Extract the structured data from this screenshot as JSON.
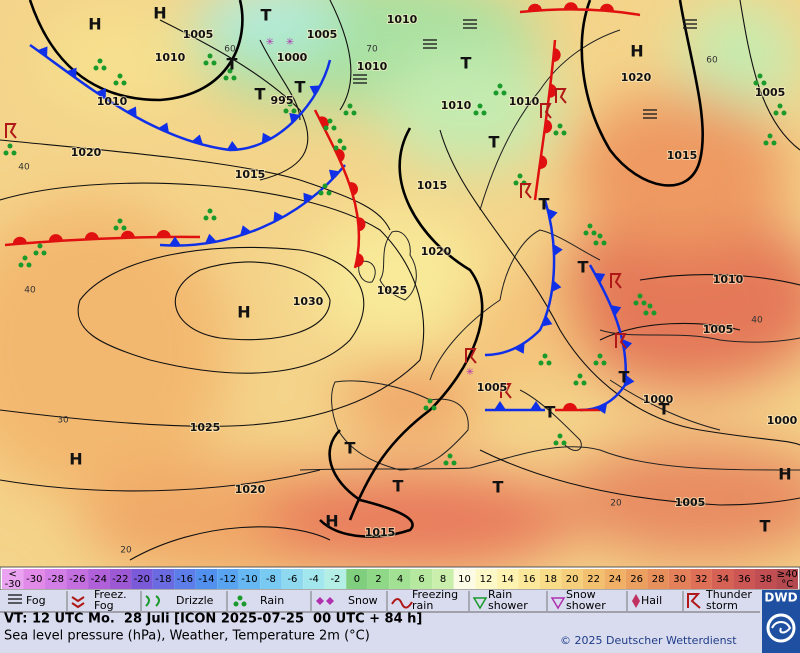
{
  "map": {
    "pressure_labels": [
      "1010",
      "1005",
      "1005",
      "1010",
      "1000",
      "1010",
      "995",
      "1010",
      "1010",
      "1010",
      "1020",
      "1015",
      "1015",
      "1015",
      "1020",
      "1005",
      "1020",
      "1025",
      "1030",
      "1010",
      "1005",
      "1005",
      "1000",
      "1000",
      "1025",
      "1020",
      "1015",
      "1005"
    ],
    "pressure_systems": [
      "H",
      "H",
      "T",
      "H",
      "T",
      "T",
      "T",
      "T",
      "T",
      "T",
      "H",
      "T",
      "T",
      "T",
      "T",
      "T",
      "T",
      "H",
      "H",
      "T",
      "T",
      "H"
    ],
    "grid_labels": [
      "60",
      "70",
      "60",
      "40",
      "40",
      "40",
      "30",
      "20",
      "20"
    ]
  },
  "scale": {
    "low_label": [
      "<",
      "-30"
    ],
    "values": [
      -30,
      -28,
      -26,
      -24,
      -22,
      -20,
      -18,
      -16,
      -14,
      -12,
      -10,
      -8,
      -6,
      -4,
      -2,
      0,
      2,
      4,
      6,
      8,
      10,
      12,
      14,
      16,
      18,
      20,
      22,
      24,
      26,
      28,
      30,
      32,
      34,
      36,
      38
    ],
    "high_label": [
      "≥40",
      "°C"
    ],
    "colors": [
      "#e9a3f0",
      "#e18ae8",
      "#d37ee6",
      "#c46fe0",
      "#b061d9",
      "#9d59d4",
      "#7a5ad8",
      "#6a6be0",
      "#5d7ee8",
      "#5290ee",
      "#58a4f0",
      "#66b8f2",
      "#79caf2",
      "#8ed9f0",
      "#a2e6ee",
      "#b4efe6",
      "#7fcf7f",
      "#8ed888",
      "#a2e194",
      "#b6e8a0",
      "#caefac",
      "#fbfbe6",
      "#fdf8c8",
      "#fdf2b0",
      "#fbe89a",
      "#f8dc88",
      "#f6cf7c",
      "#f3c070",
      "#f0b066",
      "#eca060",
      "#e8905c",
      "#e4805a",
      "#de7058",
      "#d66256",
      "#cc5654",
      "#c04e52",
      "#b44a50"
    ]
  },
  "legend": [
    {
      "lines": [
        "Fog"
      ]
    },
    {
      "lines": [
        "Freez.",
        "Fog"
      ]
    },
    {
      "lines": [
        "Drizzle"
      ]
    },
    {
      "lines": [
        "Rain"
      ]
    },
    {
      "lines": [
        "Snow"
      ]
    },
    {
      "lines": [
        "Freezing",
        "rain"
      ]
    },
    {
      "lines": [
        "Rain",
        "shower"
      ]
    },
    {
      "lines": [
        "Snow",
        "shower"
      ]
    },
    {
      "lines": [
        "Hail"
      ]
    },
    {
      "lines": [
        "Thunder",
        "storm"
      ]
    }
  ],
  "footer": {
    "valid_time": "VT: 12 UTC Mo.  28 Juli [ICON 2025-07-25  00 UTC + 84 h]",
    "description": "Sea level pressure (hPa), Weather, Temperature 2m (°C)",
    "copyright": "© 2025 Deutscher Wetterdienst",
    "logo": "DWD"
  }
}
